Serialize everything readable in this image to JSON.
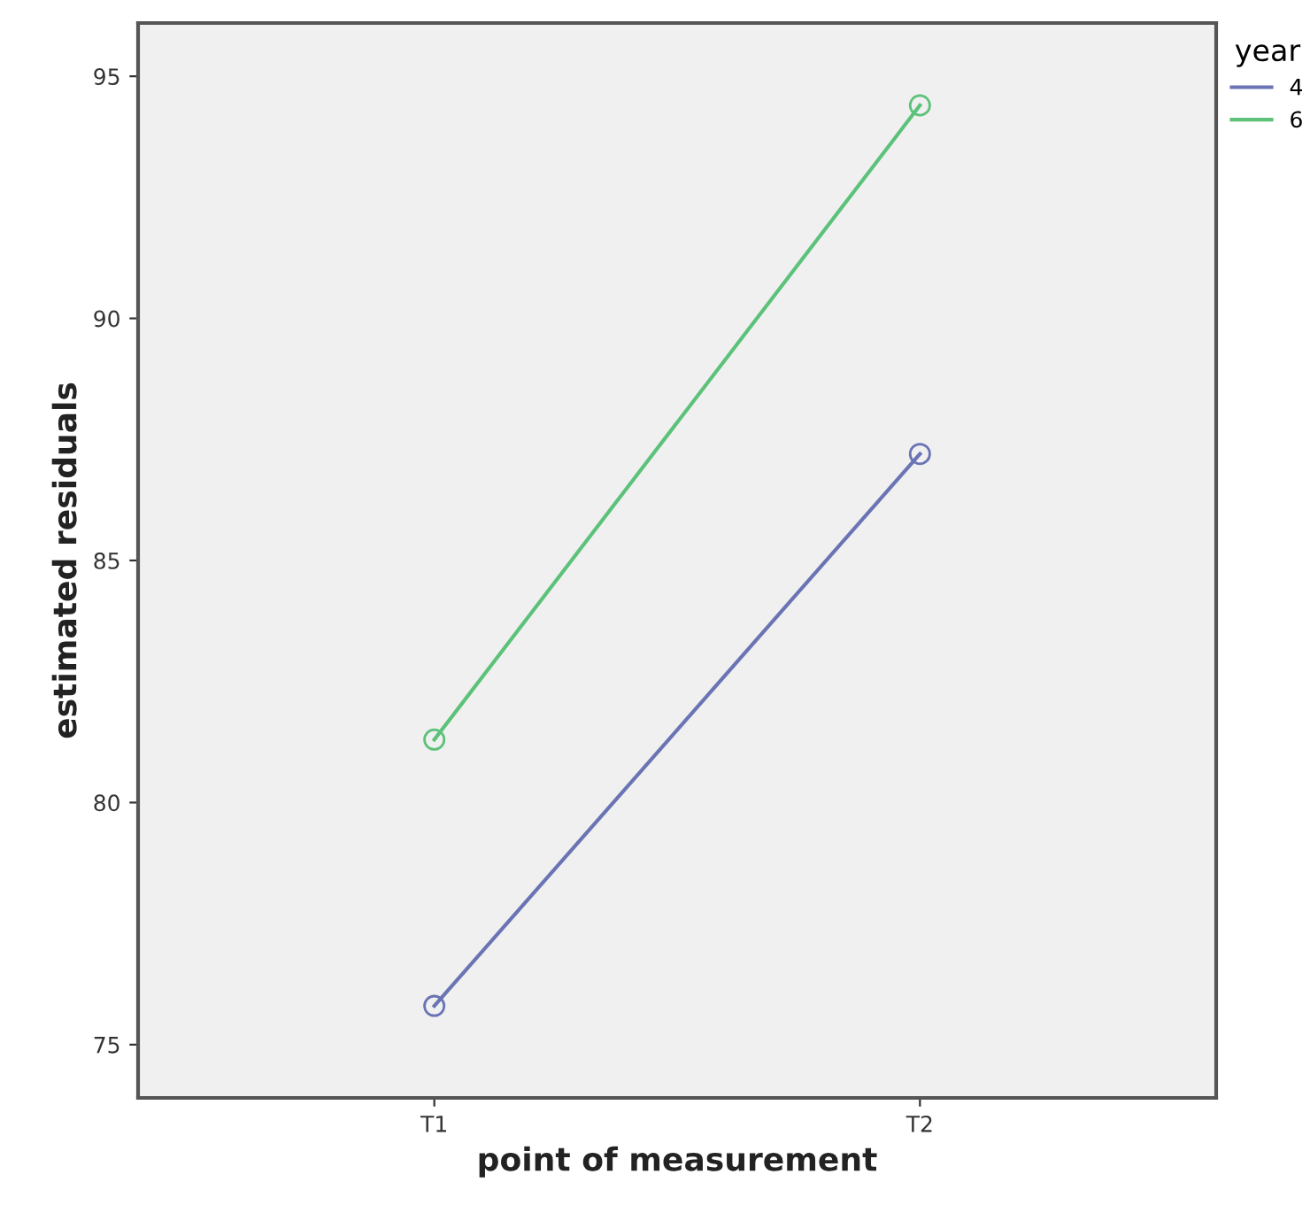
{
  "chart_data": {
    "type": "line",
    "xlabel": "point of measurement",
    "ylabel": "estimated residuals",
    "legend_title": "year",
    "categories": [
      "T1",
      "T2"
    ],
    "series": [
      {
        "name": "4",
        "color": "#6a74b4",
        "values": [
          75.8,
          87.2
        ]
      },
      {
        "name": "6",
        "color": "#5cc27a",
        "values": [
          81.3,
          94.4
        ]
      }
    ],
    "ylim": [
      73.9,
      96.1
    ],
    "yticks": [
      75,
      80,
      85,
      90,
      95
    ],
    "grid": false,
    "legend": "top right",
    "marker": "circle",
    "line_style": "solid"
  }
}
